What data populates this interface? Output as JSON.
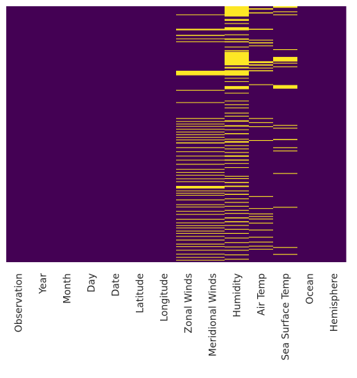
{
  "chart_data": {
    "type": "heatmap",
    "title": "",
    "xlabel": "",
    "ylabel": "",
    "columns": [
      "Observation",
      "Year",
      "Month",
      "Day",
      "Date",
      "Latitude",
      "Longitude",
      "Zonal Winds",
      "Meridional Winds",
      "Humidity",
      "Air Temp",
      "Sea Surface Temp",
      "Ocean",
      "Hemisphere"
    ],
    "value_meaning": {
      "present": 0,
      "missing": 1
    },
    "colors": {
      "present": "#440154",
      "missing": "#fde725"
    },
    "y_ticks_visible": false,
    "grid": false,
    "legend": "none",
    "missing_row_ranges": {
      "Observation": [],
      "Year": [],
      "Month": [],
      "Day": [],
      "Date": [],
      "Latitude": [],
      "Longitude": [],
      "Zonal Winds": [
        [
          0.032,
          0.034
        ],
        [
          0.088,
          0.094
        ],
        [
          0.112,
          0.116
        ],
        [
          0.126,
          0.128
        ],
        [
          0.137,
          0.14
        ],
        [
          0.252,
          0.27
        ],
        [
          0.327,
          0.33
        ],
        [
          0.375,
          0.377
        ],
        [
          0.437,
          0.44
        ],
        [
          0.449,
          0.451
        ],
        [
          0.459,
          0.461
        ],
        [
          0.468,
          0.47
        ],
        [
          0.479,
          0.481
        ],
        [
          0.49,
          0.492
        ],
        [
          0.5,
          0.503
        ],
        [
          0.511,
          0.514
        ],
        [
          0.521,
          0.523
        ],
        [
          0.532,
          0.536
        ],
        [
          0.551,
          0.554
        ],
        [
          0.567,
          0.569
        ],
        [
          0.584,
          0.586
        ],
        [
          0.6,
          0.602
        ],
        [
          0.616,
          0.619
        ],
        [
          0.636,
          0.638
        ],
        [
          0.648,
          0.65
        ],
        [
          0.659,
          0.661
        ],
        [
          0.673,
          0.675
        ],
        [
          0.684,
          0.686
        ],
        [
          0.702,
          0.712
        ],
        [
          0.72,
          0.722
        ],
        [
          0.729,
          0.731
        ],
        [
          0.737,
          0.739
        ],
        [
          0.755,
          0.758
        ],
        [
          0.774,
          0.776
        ],
        [
          0.783,
          0.785
        ],
        [
          0.8,
          0.802
        ],
        [
          0.812,
          0.814
        ],
        [
          0.831,
          0.834
        ],
        [
          0.845,
          0.847
        ],
        [
          0.856,
          0.858
        ],
        [
          0.865,
          0.867
        ],
        [
          0.877,
          0.879
        ],
        [
          0.886,
          0.888
        ],
        [
          0.898,
          0.9
        ],
        [
          0.912,
          0.915
        ],
        [
          0.928,
          0.931
        ],
        [
          0.938,
          0.94
        ],
        [
          0.952,
          0.954
        ],
        [
          0.967,
          0.969
        ],
        [
          0.98,
          0.982
        ],
        [
          0.991,
          0.993
        ]
      ],
      "Meridional Winds": [
        [
          0.032,
          0.034
        ],
        [
          0.088,
          0.094
        ],
        [
          0.112,
          0.116
        ],
        [
          0.126,
          0.128
        ],
        [
          0.137,
          0.14
        ],
        [
          0.252,
          0.27
        ],
        [
          0.327,
          0.33
        ],
        [
          0.375,
          0.377
        ],
        [
          0.437,
          0.44
        ],
        [
          0.449,
          0.451
        ],
        [
          0.459,
          0.461
        ],
        [
          0.468,
          0.47
        ],
        [
          0.479,
          0.481
        ],
        [
          0.49,
          0.492
        ],
        [
          0.5,
          0.503
        ],
        [
          0.511,
          0.514
        ],
        [
          0.521,
          0.523
        ],
        [
          0.532,
          0.536
        ],
        [
          0.551,
          0.554
        ],
        [
          0.567,
          0.569
        ],
        [
          0.584,
          0.586
        ],
        [
          0.6,
          0.602
        ],
        [
          0.616,
          0.619
        ],
        [
          0.636,
          0.638
        ],
        [
          0.648,
          0.65
        ],
        [
          0.659,
          0.661
        ],
        [
          0.673,
          0.675
        ],
        [
          0.684,
          0.686
        ],
        [
          0.702,
          0.712
        ],
        [
          0.72,
          0.722
        ],
        [
          0.729,
          0.731
        ],
        [
          0.737,
          0.739
        ],
        [
          0.755,
          0.758
        ],
        [
          0.774,
          0.776
        ],
        [
          0.783,
          0.785
        ],
        [
          0.8,
          0.802
        ],
        [
          0.812,
          0.814
        ],
        [
          0.831,
          0.834
        ],
        [
          0.845,
          0.847
        ],
        [
          0.856,
          0.858
        ],
        [
          0.865,
          0.867
        ],
        [
          0.877,
          0.879
        ],
        [
          0.886,
          0.888
        ],
        [
          0.898,
          0.9
        ],
        [
          0.912,
          0.915
        ],
        [
          0.928,
          0.931
        ],
        [
          0.938,
          0.94
        ],
        [
          0.952,
          0.954
        ],
        [
          0.967,
          0.969
        ],
        [
          0.98,
          0.982
        ],
        [
          0.991,
          0.993
        ]
      ],
      "Humidity": [
        [
          0.0,
          0.04
        ],
        [
          0.05,
          0.057
        ],
        [
          0.066,
          0.069
        ],
        [
          0.082,
          0.094
        ],
        [
          0.11,
          0.113
        ],
        [
          0.126,
          0.131
        ],
        [
          0.137,
          0.141
        ],
        [
          0.158,
          0.161
        ],
        [
          0.172,
          0.176
        ],
        [
          0.178,
          0.231
        ],
        [
          0.237,
          0.243
        ],
        [
          0.25,
          0.271
        ],
        [
          0.28,
          0.282
        ],
        [
          0.293,
          0.295
        ],
        [
          0.312,
          0.324
        ],
        [
          0.338,
          0.34
        ],
        [
          0.369,
          0.371
        ],
        [
          0.383,
          0.386
        ],
        [
          0.396,
          0.398
        ],
        [
          0.416,
          0.419
        ],
        [
          0.428,
          0.431
        ],
        [
          0.446,
          0.451
        ],
        [
          0.465,
          0.47
        ],
        [
          0.481,
          0.483
        ],
        [
          0.496,
          0.5
        ],
        [
          0.518,
          0.521
        ],
        [
          0.527,
          0.533
        ],
        [
          0.543,
          0.546
        ],
        [
          0.556,
          0.559
        ],
        [
          0.57,
          0.573
        ],
        [
          0.583,
          0.588
        ],
        [
          0.599,
          0.603
        ],
        [
          0.613,
          0.615
        ],
        [
          0.629,
          0.631
        ],
        [
          0.663,
          0.666
        ],
        [
          0.672,
          0.675
        ],
        [
          0.687,
          0.691
        ],
        [
          0.701,
          0.706
        ],
        [
          0.72,
          0.723
        ],
        [
          0.733,
          0.737
        ],
        [
          0.751,
          0.754
        ],
        [
          0.765,
          0.768
        ],
        [
          0.78,
          0.783
        ],
        [
          0.796,
          0.799
        ],
        [
          0.808,
          0.811
        ],
        [
          0.825,
          0.829
        ],
        [
          0.84,
          0.844
        ],
        [
          0.855,
          0.858
        ],
        [
          0.87,
          0.873
        ],
        [
          0.886,
          0.889
        ],
        [
          0.904,
          0.907
        ],
        [
          0.922,
          0.925
        ],
        [
          0.939,
          0.942
        ],
        [
          0.952,
          0.955
        ],
        [
          0.97,
          0.973
        ],
        [
          0.987,
          0.99
        ]
      ],
      "Air Temp": [
        [
          0.008,
          0.013
        ],
        [
          0.024,
          0.028
        ],
        [
          0.088,
          0.092
        ],
        [
          0.131,
          0.134
        ],
        [
          0.141,
          0.145
        ],
        [
          0.153,
          0.156
        ],
        [
          0.215,
          0.222
        ],
        [
          0.227,
          0.232
        ],
        [
          0.24,
          0.243
        ],
        [
          0.25,
          0.254
        ],
        [
          0.305,
          0.308
        ],
        [
          0.437,
          0.44
        ],
        [
          0.453,
          0.456
        ],
        [
          0.469,
          0.472
        ],
        [
          0.523,
          0.526
        ],
        [
          0.742,
          0.745
        ],
        [
          0.789,
          0.791
        ],
        [
          0.81,
          0.813
        ],
        [
          0.82,
          0.823
        ],
        [
          0.83,
          0.833
        ],
        [
          0.846,
          0.849
        ],
        [
          0.873,
          0.876
        ],
        [
          0.901,
          0.904
        ],
        [
          0.92,
          0.923
        ],
        [
          0.936,
          0.939
        ],
        [
          0.948,
          0.95
        ]
      ],
      "Sea Surface Temp": [
        [
          0.0,
          0.006
        ],
        [
          0.02,
          0.023
        ],
        [
          0.032,
          0.035
        ],
        [
          0.168,
          0.171
        ],
        [
          0.198,
          0.216
        ],
        [
          0.221,
          0.224
        ],
        [
          0.235,
          0.238
        ],
        [
          0.308,
          0.322
        ],
        [
          0.464,
          0.467
        ],
        [
          0.475,
          0.478
        ],
        [
          0.519,
          0.523
        ],
        [
          0.551,
          0.554
        ],
        [
          0.564,
          0.567
        ],
        [
          0.652,
          0.655
        ],
        [
          0.784,
          0.787
        ],
        [
          0.941,
          0.944
        ],
        [
          0.968,
          0.971
        ]
      ],
      "Ocean": [],
      "Hemisphere": []
    }
  }
}
